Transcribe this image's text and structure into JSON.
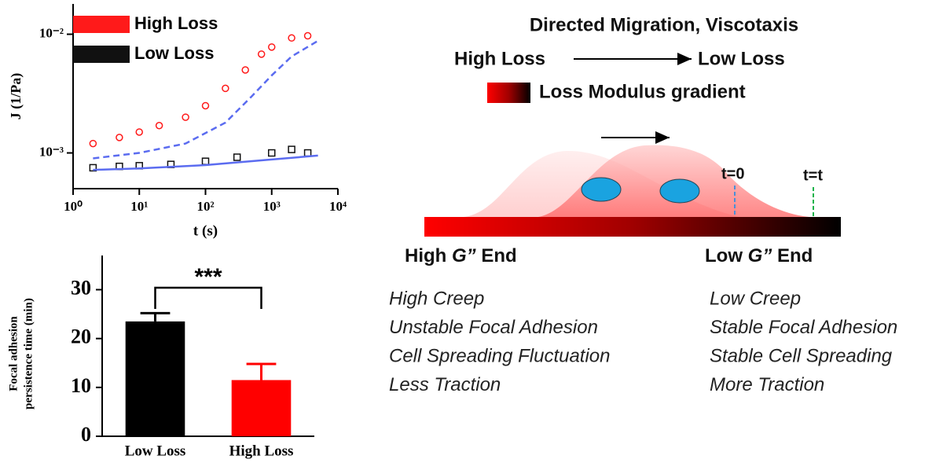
{
  "chart_data": [
    {
      "type": "scatter",
      "xscale": "log",
      "yscale": "log",
      "xlabel": "t (s)",
      "ylabel": "J (1/Pa)",
      "xlim": [
        1,
        10000
      ],
      "ylim": [
        0.0005,
        0.018
      ],
      "xticks": [
        {
          "value": 1,
          "label": "10⁰"
        },
        {
          "value": 10,
          "label": "10¹"
        },
        {
          "value": 100,
          "label": "10²"
        },
        {
          "value": 1000,
          "label": "10³"
        },
        {
          "value": 10000,
          "label": "10⁴"
        }
      ],
      "yticks": [
        {
          "value": 0.001,
          "label": "10⁻³"
        },
        {
          "value": 0.01,
          "label": "10⁻²"
        }
      ],
      "legend": "top-left",
      "series": [
        {
          "name": "High Loss",
          "color": "#ff1a1a",
          "marker": "circle",
          "x": [
            2,
            5,
            10,
            20,
            50,
            100,
            200,
            400,
            700,
            1000,
            2000,
            3500
          ],
          "values": [
            0.0012,
            0.00135,
            0.0015,
            0.0017,
            0.002,
            0.0025,
            0.0035,
            0.005,
            0.0068,
            0.0078,
            0.0093,
            0.0097
          ]
        },
        {
          "name": "Low Loss",
          "color": "#111111",
          "marker": "square",
          "x": [
            2,
            5,
            10,
            30,
            100,
            300,
            1000,
            2000,
            3500
          ],
          "values": [
            0.00075,
            0.00077,
            0.00078,
            0.0008,
            0.00085,
            0.00092,
            0.001,
            0.00107,
            0.001
          ]
        },
        {
          "color": "#5b6cf0",
          "style": "dashed",
          "x": [
            2,
            10,
            50,
            200,
            500,
            1000,
            2000,
            5000
          ],
          "values": [
            0.0009,
            0.001,
            0.0012,
            0.0018,
            0.003,
            0.0045,
            0.0065,
            0.0088
          ]
        },
        {
          "color": "#5b6cf0",
          "style": "solid",
          "x": [
            2,
            10,
            100,
            1000,
            5000
          ],
          "values": [
            0.00072,
            0.00074,
            0.00079,
            0.00088,
            0.00095
          ]
        }
      ]
    },
    {
      "type": "bar",
      "ylabel": [
        "Focal adhesion",
        "persistence time (min)"
      ],
      "categories": [
        "Low Loss",
        "High Loss"
      ],
      "values": [
        23.5,
        11.5
      ],
      "errors": [
        1.7,
        3.3
      ],
      "colors": [
        "#000000",
        "#ff0000"
      ],
      "ylim": [
        0,
        37
      ],
      "yticks": [
        0,
        10,
        20,
        30
      ],
      "annotation": "***"
    }
  ],
  "diagram": {
    "title": "Directed Migration, Viscotaxis",
    "from": "High Loss",
    "to": "Low Loss",
    "gradient_label": "Loss Modulus gradient",
    "t0": "t=0",
    "tt": "t=t",
    "left_end": {
      "prefix": "High",
      "symbol": "G”",
      "suffix": "End"
    },
    "right_end": {
      "prefix": "Low",
      "symbol": "G”",
      "suffix": "End"
    },
    "left_list": [
      "High Creep",
      "Unstable Focal Adhesion",
      "Cell Spreading Fluctuation",
      "Less Traction"
    ],
    "right_list": [
      "Low Creep",
      "Stable Focal Adhesion",
      "Stable Cell Spreading",
      "More Traction"
    ]
  }
}
